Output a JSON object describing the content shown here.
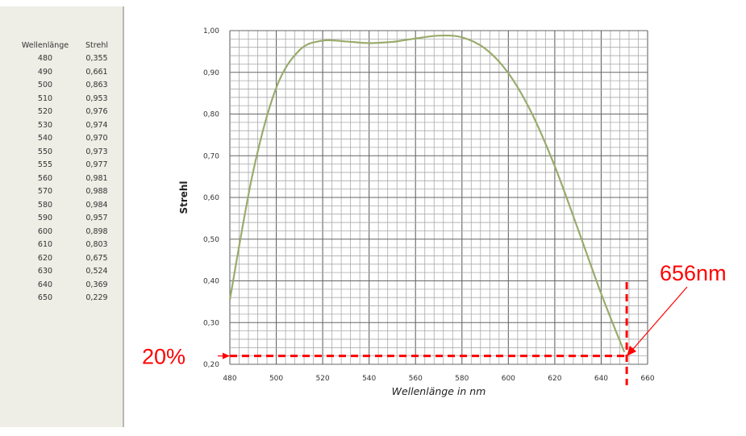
{
  "table": {
    "headers": [
      "Wellenlänge",
      "Strehl"
    ],
    "rows": [
      [
        "480",
        "0,355"
      ],
      [
        "490",
        "0,661"
      ],
      [
        "500",
        "0,863"
      ],
      [
        "510",
        "0,953"
      ],
      [
        "520",
        "0,976"
      ],
      [
        "530",
        "0,974"
      ],
      [
        "540",
        "0,970"
      ],
      [
        "550",
        "0,973"
      ],
      [
        "555",
        "0,977"
      ],
      [
        "560",
        "0,981"
      ],
      [
        "570",
        "0,988"
      ],
      [
        "580",
        "0,984"
      ],
      [
        "590",
        "0,957"
      ],
      [
        "600",
        "0,898"
      ],
      [
        "610",
        "0,803"
      ],
      [
        "620",
        "0,675"
      ],
      [
        "630",
        "0,524"
      ],
      [
        "640",
        "0,369"
      ],
      [
        "650",
        "0,229"
      ]
    ]
  },
  "chart_data": {
    "type": "line",
    "title": "",
    "xlabel": "Wellenlänge in nm",
    "ylabel": "Strehl",
    "xlim": [
      480,
      660
    ],
    "ylim": [
      0.2,
      1.0
    ],
    "xticks": [
      "480",
      "500",
      "520",
      "540",
      "560",
      "580",
      "600",
      "620",
      "640",
      "660"
    ],
    "yticks": [
      "0,20",
      "0,30",
      "0,40",
      "0,50",
      "0,60",
      "0,70",
      "0,80",
      "0,90",
      "1,00"
    ],
    "grid": true,
    "series": [
      {
        "color": "#9aab6c",
        "x": [
          480,
          490,
          500,
          510,
          520,
          530,
          540,
          550,
          555,
          560,
          570,
          580,
          590,
          600,
          610,
          620,
          630,
          640,
          650
        ],
        "y": [
          0.355,
          0.661,
          0.863,
          0.953,
          0.976,
          0.974,
          0.97,
          0.973,
          0.977,
          0.981,
          0.988,
          0.984,
          0.957,
          0.898,
          0.803,
          0.675,
          0.524,
          0.369,
          0.229
        ]
      }
    ],
    "annotations": [
      {
        "text": "20%",
        "type": "horizontal-dashed-line",
        "y": 0.22,
        "color": "#ff0000"
      },
      {
        "text": "656nm",
        "type": "vertical-dashed-line",
        "x": 651,
        "color": "#ff0000"
      }
    ]
  }
}
